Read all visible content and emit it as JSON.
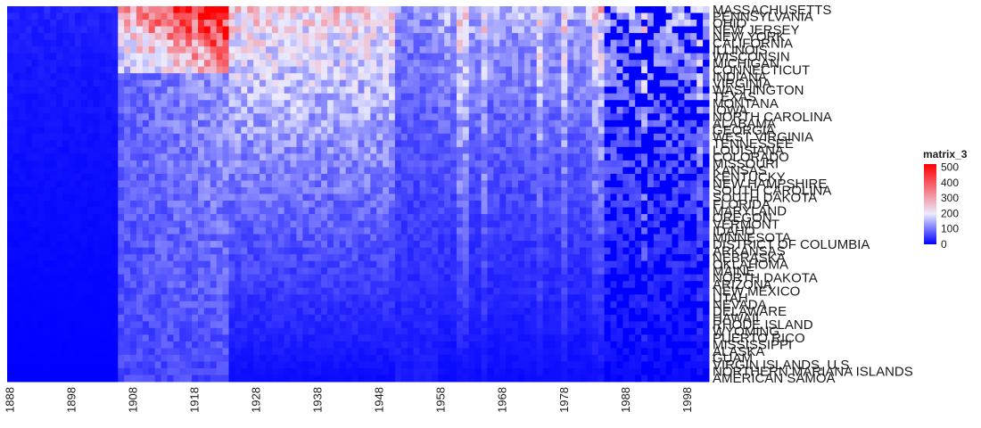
{
  "chart_data": {
    "type": "heatmap",
    "title": "",
    "legend": {
      "title": "matrix_3",
      "placement": "right",
      "ticks": [
        "500",
        "400",
        "300",
        "200",
        "100",
        "0"
      ],
      "min": 0,
      "max": 520,
      "colors": {
        "low": "#0000ff",
        "mid": "#ebebff",
        "high": "#ff0000"
      }
    },
    "x_start_year": 1888,
    "x_end_year": 2001,
    "x_tick_labels": [
      "1888",
      "1898",
      "1908",
      "1918",
      "1928",
      "1938",
      "1948",
      "1958",
      "1968",
      "1978",
      "1988",
      "1998"
    ],
    "rows": [
      "MASSACHUSETTS",
      "PENNSYLVANIA",
      "OHIO",
      "NEW JERSEY",
      "NEW YORK",
      "CALIFORNIA",
      "ILLINOIS",
      "WISCONSIN",
      "MICHIGAN",
      "CONNECTICUT",
      "INDIANA",
      "VIRGINIA",
      "WASHINGTON",
      "TEXAS",
      "MONTANA",
      "IOWA",
      "NORTH CAROLINA",
      "ALABAMA",
      "GEORGIA",
      "WEST VIRGINIA",
      "TENNESSEE",
      "LOUISIANA",
      "COLORADO",
      "MISSOURI",
      "KANSAS",
      "KENTUCKY",
      "NEW HAMPSHIRE",
      "SOUTH CAROLINA",
      "SOUTH DAKOTA",
      "FLORIDA",
      "MARYLAND",
      "OREGON",
      "VERMONT",
      "IDAHO",
      "MINNESOTA",
      "DISTRICT OF COLUMBIA",
      "ARKANSAS",
      "NEBRASKA",
      "OKLAHOMA",
      "MAINE",
      "NORTH DAKOTA",
      "ARIZONA",
      "NEW MEXICO",
      "UTAH",
      "NEVADA",
      "DELAWARE",
      "HAWAII",
      "RHODE ISLAND",
      "WYOMING",
      "PUERTO RICO",
      "MISSISSIPPI",
      "ALASKA",
      "GUAM",
      "VIRGIN ISLANDS, U.S.",
      "NORTHERN MARIANA ISLANDS",
      "AMERICAN SAMOA"
    ],
    "value_model": {
      "description": "Approximate cell values (0-520) by period; rows ordered from highest (top) to lowest (bottom) overall values.",
      "periods": [
        {
          "from": 1888,
          "to": 1905,
          "top_row_value": 30,
          "bottom_row_value": 0
        },
        {
          "from": 1906,
          "to": 1923,
          "top_row_value": 520,
          "bottom_row_value": 5
        },
        {
          "from": 1924,
          "to": 1950,
          "top_row_value": 260,
          "bottom_row_value": 10
        },
        {
          "from": 1951,
          "to": 1957,
          "top_row_value": 130,
          "bottom_row_value": 20
        },
        {
          "from": 1958,
          "to": 2001,
          "top_row_value": 160,
          "bottom_row_value": 10
        }
      ]
    }
  }
}
